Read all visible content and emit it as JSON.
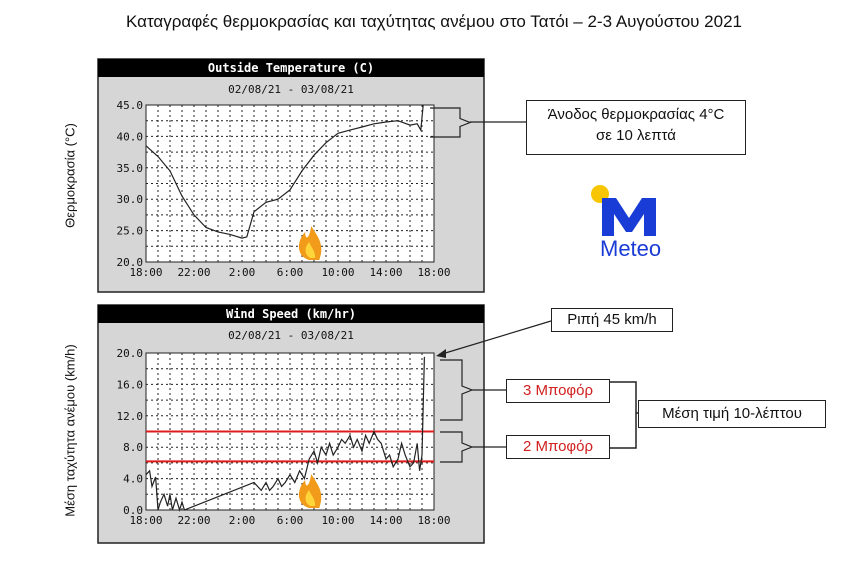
{
  "title": "Καταγραφές θερμοκρασίας και ταχύτητας ανέμου στο Τατόι – 2-3 Αυγούστου 2021",
  "logo": {
    "text": "Meteo",
    "icon": "meteo-m-sun-logo",
    "sun_color": "#f7c600",
    "m_color": "#1a3cd6"
  },
  "chart_data": [
    {
      "type": "line",
      "title": "Outside Temperature (C)",
      "subtitle": "02/08/21 - 03/08/21",
      "ylabel": "Θερμοκρασία (°C)",
      "ylim": [
        20,
        45
      ],
      "yticks": [
        "45.0",
        "40.0",
        "35.0",
        "30.0",
        "25.0",
        "20.0"
      ],
      "xticks": [
        "18:00",
        "22:00",
        "2:00",
        "6:00",
        "10:00",
        "14:00",
        "18:00"
      ],
      "grid": true,
      "series": [
        {
          "color": "#222222",
          "x": [
            0,
            1,
            2,
            3,
            4,
            5,
            6,
            7,
            8,
            8.4,
            9,
            10,
            11,
            12,
            13,
            14,
            15,
            16,
            17,
            18,
            19,
            20,
            21,
            22,
            22.6,
            22.9,
            23.1
          ],
          "y": [
            38.5,
            36.8,
            34.5,
            30.5,
            27.5,
            25.5,
            24.8,
            24.4,
            23.8,
            24.0,
            28.0,
            29.5,
            30.0,
            31.5,
            34.5,
            37.0,
            39.0,
            40.5,
            41.0,
            41.5,
            42.0,
            42.3,
            42.5,
            41.8,
            42.0,
            41.0,
            45.0
          ]
        }
      ]
    },
    {
      "type": "line",
      "title": "Wind Speed (km/hr)",
      "subtitle": "02/08/21 - 03/08/21",
      "ylabel": "Μέση ταχύτητα ανέμου (km/h)",
      "ylim": [
        0,
        20
      ],
      "yticks": [
        "20.0",
        "16.0",
        "12.0",
        "8.0",
        "4.0",
        "0.0"
      ],
      "xticks": [
        "18:00",
        "22:00",
        "2:00",
        "6:00",
        "10:00",
        "14:00",
        "18:00"
      ],
      "grid": true,
      "reference_lines": [
        {
          "y": 10,
          "color": "#e01b1b"
        },
        {
          "y": 6.2,
          "color": "#e01b1b"
        }
      ],
      "series": [
        {
          "color": "#222222",
          "x": [
            0,
            0.3,
            0.5,
            0.8,
            1.0,
            1.2,
            1.5,
            1.8,
            2.0,
            2.2,
            2.5,
            2.8,
            3.0,
            3.2,
            9.0,
            9.3,
            9.6,
            10.0,
            10.3,
            10.6,
            11.0,
            11.3,
            11.6,
            12.0,
            12.4,
            12.8,
            13.2,
            13.6,
            14.0,
            14.3,
            14.6,
            15.0,
            15.3,
            15.6,
            16.0,
            16.3,
            16.6,
            17.0,
            17.3,
            17.6,
            18.0,
            18.3,
            18.6,
            19.0,
            19.3,
            19.6,
            20.0,
            20.3,
            20.6,
            21.0,
            21.3,
            21.6,
            22.0,
            22.3,
            22.6,
            22.8,
            23.0,
            23.2
          ],
          "y": [
            4.5,
            5.0,
            3.0,
            4.2,
            0.0,
            1.0,
            2.0,
            0.5,
            2.0,
            0.0,
            1.5,
            0.0,
            1.0,
            0.0,
            3.5,
            3.0,
            2.5,
            3.5,
            2.5,
            3.0,
            4.0,
            3.0,
            3.5,
            4.5,
            3.5,
            5.0,
            4.0,
            6.5,
            7.5,
            6.0,
            8.0,
            7.0,
            8.5,
            7.0,
            8.0,
            9.0,
            8.5,
            9.5,
            8.0,
            9.0,
            7.5,
            9.5,
            8.5,
            10.0,
            9.0,
            8.5,
            6.5,
            7.0,
            5.5,
            6.5,
            8.5,
            7.0,
            5.5,
            6.0,
            8.5,
            5.0,
            7.0,
            19.5
          ]
        }
      ]
    }
  ],
  "annotations": {
    "temp_rise": [
      "Άνοδος θερμοκρασίας 4°C",
      "σε 10 λεπτά"
    ],
    "gust": "Ριπή 45 km/h",
    "beaufort3": "3 Μποφόρ",
    "beaufort2": "2 Μποφόρ",
    "mean10": "Μέση τιμή 10-λέπτου"
  }
}
